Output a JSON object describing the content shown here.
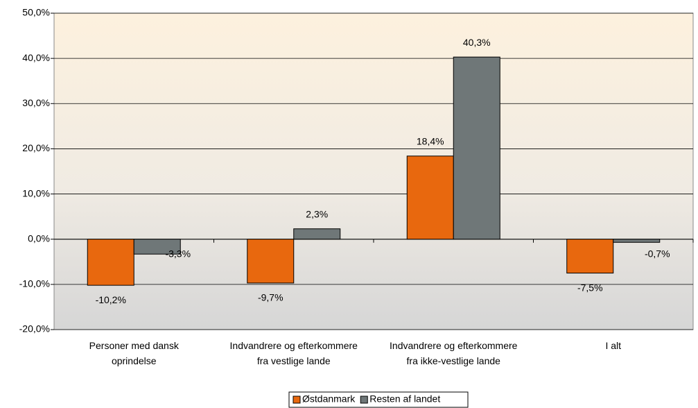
{
  "chart_data": {
    "type": "bar",
    "categories": [
      "Personer med dansk\noprindelse",
      "Indvandrere og efterkommere\nfra vestlige lande",
      "Indvandrere og efterkommere\nfra ikke-vestlige lande",
      "I alt"
    ],
    "series": [
      {
        "name": "Østdanmark",
        "color": "#e8680e",
        "values": [
          -10.2,
          -9.7,
          18.4,
          -7.5
        ],
        "value_labels": [
          "-10,2%",
          "-9,7%",
          "18,4%",
          "-7,5%"
        ]
      },
      {
        "name": "Resten af landet",
        "color": "#6f7778",
        "values": [
          -3.3,
          2.3,
          40.3,
          -0.7
        ],
        "value_labels": [
          "-3,3%",
          "2,3%",
          "40,3%",
          "-0,7%"
        ]
      }
    ],
    "ylim": [
      -20,
      50
    ],
    "yticks": [
      {
        "value": -20,
        "label": "-20,0%"
      },
      {
        "value": -10,
        "label": "-10,0%"
      },
      {
        "value": 0,
        "label": "0,0%"
      },
      {
        "value": 10,
        "label": "10,0%"
      },
      {
        "value": 20,
        "label": "20,0%"
      },
      {
        "value": 30,
        "label": "30,0%"
      },
      {
        "value": 40,
        "label": "40,0%"
      },
      {
        "value": 50,
        "label": "50,0%"
      }
    ],
    "grid": true,
    "legend": "bottom"
  }
}
